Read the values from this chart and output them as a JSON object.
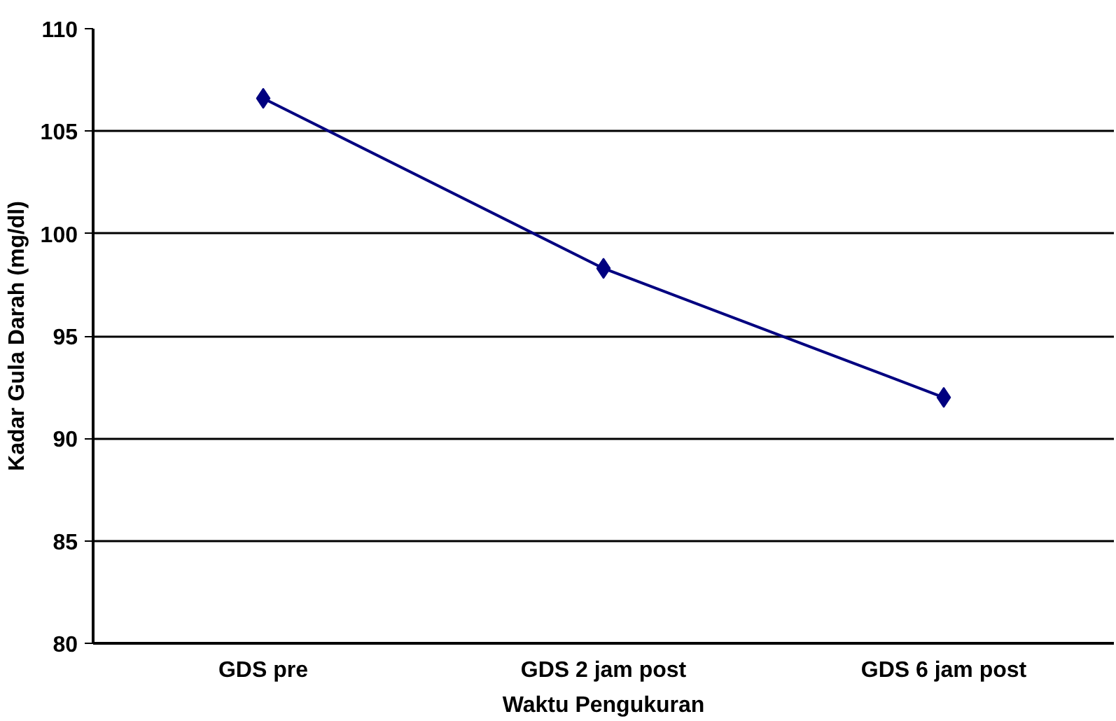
{
  "chart_data": {
    "type": "line",
    "xlabel": "Waktu Pengukuran",
    "ylabel": "Kadar Gula Darah (mg/dl)",
    "categories": [
      "GDS pre",
      "GDS 2 jam post",
      "GDS 6 jam post"
    ],
    "series": [
      {
        "color": "#000080",
        "values": [
          106.6,
          98.3,
          92.0
        ]
      }
    ],
    "ylim": [
      80,
      110
    ],
    "yticks": [
      80,
      85,
      90,
      95,
      100,
      105,
      110
    ],
    "grid": "y",
    "marker": "diamond",
    "line_style": "solid"
  }
}
